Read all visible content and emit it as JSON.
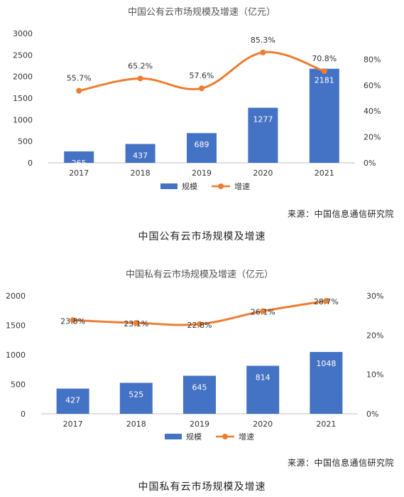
{
  "chart_data": [
    {
      "type": "bar",
      "title": "中国公有云市场规模及增速（亿元）",
      "categories": [
        "2017",
        "2018",
        "2019",
        "2020",
        "2021"
      ],
      "series": [
        {
          "name": "规模",
          "type": "bar",
          "values": [
            265,
            437,
            689,
            1277,
            2181
          ],
          "color": "#4472C4",
          "labels": [
            "265",
            "437",
            "689",
            "1277",
            "2181"
          ]
        },
        {
          "name": "增速",
          "type": "line",
          "values": [
            55.7,
            65.2,
            57.6,
            85.3,
            70.8
          ],
          "color": "#ED7D31",
          "labels": [
            "55.7%",
            "65.2%",
            "57.6%",
            "85.3%",
            "70.8%"
          ]
        }
      ],
      "ylim": [
        0,
        3000
      ],
      "yticks": [
        "0",
        "500",
        "1000",
        "1500",
        "2000",
        "2500",
        "3000"
      ],
      "y2lim": [
        0,
        100
      ],
      "y2ticks": [
        "0%",
        "20%",
        "40%",
        "60%",
        "80%"
      ],
      "legend": "bottom",
      "grid": false
    },
    {
      "type": "bar",
      "title": "中国私有云市场规模及增速（亿元）",
      "categories": [
        "2017",
        "2018",
        "2019",
        "2020",
        "2021"
      ],
      "series": [
        {
          "name": "规模",
          "type": "bar",
          "values": [
            427,
            525,
            645,
            814,
            1048
          ],
          "color": "#4472C4",
          "labels": [
            "427",
            "525",
            "645",
            "814",
            "1048"
          ]
        },
        {
          "name": "增速",
          "type": "line",
          "values": [
            23.8,
            23.1,
            22.8,
            26.1,
            28.7
          ],
          "color": "#ED7D31",
          "labels": [
            "23.8%",
            "23.1%",
            "22.8%",
            "26.1%",
            "28.7%"
          ]
        }
      ],
      "ylim": [
        0,
        2000
      ],
      "yticks": [
        "0",
        "500",
        "1000",
        "1500",
        "2000"
      ],
      "y2lim": [
        0,
        30
      ],
      "y2ticks": [
        "0%",
        "10%",
        "20%",
        "30%"
      ],
      "legend": "bottom",
      "grid": false
    }
  ],
  "sources": [
    "来源：中国信息通信研究院",
    "来源：中国信息通信研究院"
  ],
  "captions": [
    "中国公有云市场规模及增速",
    "中国私有云市场规模及增速"
  ]
}
